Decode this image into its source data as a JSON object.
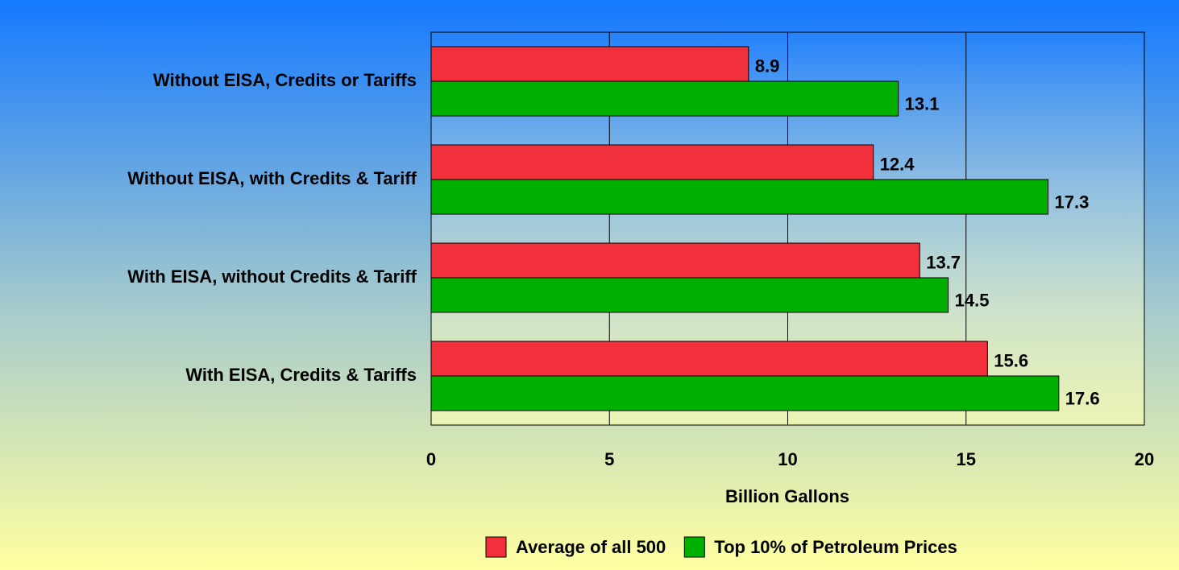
{
  "chart_data": {
    "type": "bar",
    "orientation": "horizontal",
    "categories": [
      "Without EISA, Credits or Tariffs",
      "Without EISA, with Credits & Tariff",
      "With EISA, without Credits & Tariff",
      "With EISA, Credits & Tariffs"
    ],
    "series": [
      {
        "name": "Average of all 500",
        "color": "#f2303c",
        "values": [
          8.9,
          12.4,
          13.7,
          15.6
        ]
      },
      {
        "name": "Top 10% of Petroleum Prices",
        "color": "#00b000",
        "values": [
          13.1,
          17.3,
          14.5,
          17.6
        ]
      }
    ],
    "x_label": "Billion Gallons",
    "xlim": [
      0,
      20
    ],
    "xticks": [
      0,
      5,
      10,
      15,
      20
    ],
    "grid": true,
    "legend": "bottom"
  }
}
